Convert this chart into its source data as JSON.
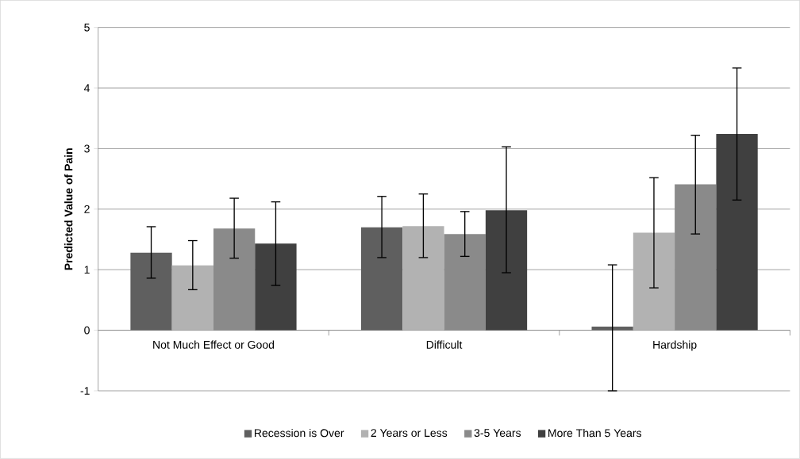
{
  "chart_data": {
    "type": "bar",
    "ylabel": "Predicted Value of Pain",
    "categories": [
      "Not Much Effect or Good",
      "Difficult",
      "Hardship"
    ],
    "series": [
      {
        "name": "Recession is Over",
        "color": "#5f5f5f",
        "values": [
          1.28,
          1.7,
          0.06
        ],
        "errors": [
          [
            0.86,
            1.71
          ],
          [
            1.2,
            2.21
          ],
          [
            -1.0,
            1.08
          ]
        ]
      },
      {
        "name": "2 Years or Less",
        "color": "#b2b2b2",
        "values": [
          1.07,
          1.72,
          1.61
        ],
        "errors": [
          [
            0.67,
            1.48
          ],
          [
            1.2,
            2.25
          ],
          [
            0.7,
            2.52
          ]
        ]
      },
      {
        "name": "3-5 Years",
        "color": "#8a8a8a",
        "values": [
          1.68,
          1.59,
          2.41
        ],
        "errors": [
          [
            1.19,
            2.18
          ],
          [
            1.22,
            1.96
          ],
          [
            1.59,
            3.22
          ]
        ]
      },
      {
        "name": "More Than 5 Years",
        "color": "#404040",
        "values": [
          1.43,
          1.98,
          3.24
        ],
        "errors": [
          [
            0.74,
            2.12
          ],
          [
            0.95,
            3.03
          ],
          [
            2.15,
            4.33
          ]
        ]
      }
    ],
    "ylim": [
      -1,
      5
    ],
    "yticks": [
      -1,
      0,
      1,
      2,
      3,
      4,
      5
    ],
    "grid": "y",
    "legend": "bottom"
  }
}
